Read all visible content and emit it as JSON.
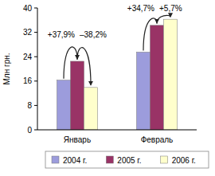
{
  "chart_data": {
    "type": "bar",
    "y_label": "Млн грн.",
    "categories": [
      "Январь",
      "Февраль"
    ],
    "series": [
      {
        "name": "2004 г.",
        "color": "#9c9cdc",
        "values": [
          16.3,
          25.5
        ]
      },
      {
        "name": "2005 г.",
        "color": "#993366",
        "values": [
          22.5,
          34.3
        ]
      },
      {
        "name": "2006 г.",
        "color": "#ffffcc",
        "values": [
          13.9,
          36.3
        ]
      }
    ],
    "annotations": [
      {
        "text": "+37,9%",
        "category": "Январь",
        "from": "2004 г.",
        "to": "2005 г."
      },
      {
        "text": "–38,2%",
        "category": "Январь",
        "from": "2005 г.",
        "to": "2006 г."
      },
      {
        "text": "+34,7%",
        "category": "Февраль",
        "from": "2004 г.",
        "to": "2005 г."
      },
      {
        "text": "+5,7%",
        "category": "Февраль",
        "from": "2005 г.",
        "to": "2006 г."
      }
    ],
    "ylim": [
      0,
      40
    ],
    "yticks": [
      0,
      8,
      16,
      24,
      32,
      40
    ],
    "grid": false,
    "legend": "bottom"
  }
}
